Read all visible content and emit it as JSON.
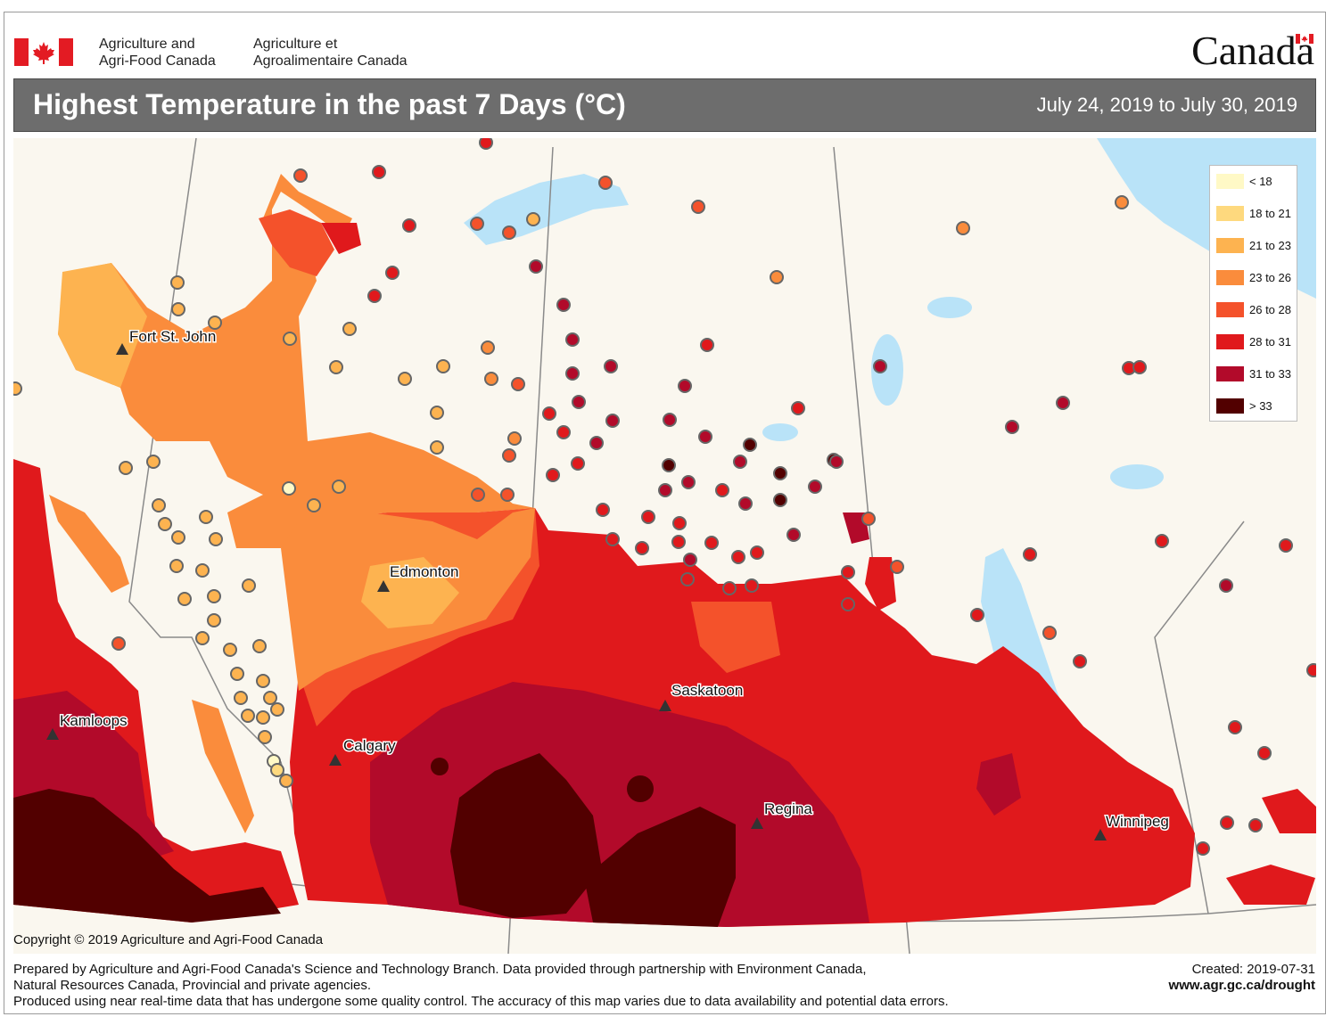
{
  "header": {
    "agency_en_line1": "Agriculture and",
    "agency_en_line2": "Agri-Food Canada",
    "agency_fr_line1": "Agriculture et",
    "agency_fr_line2": "Agroalimentaire Canada",
    "wordmark": "Canada"
  },
  "title": "Highest Temperature in the past 7 Days (°C)",
  "date_range": "July 24, 2019 to July 30, 2019",
  "colors": {
    "lt18": "#fff9c6",
    "c18_21": "#fed97e",
    "c21_23": "#fdb350",
    "c23_26": "#fa8c3c",
    "c26_28": "#f4522b",
    "c28_31": "#e0191c",
    "c31_33": "#b20a2a",
    "gt33": "#520000",
    "water": "#b9e3f8",
    "land": "#faf7ef"
  },
  "legend": [
    {
      "label": "< 18",
      "color": "#fff9c6"
    },
    {
      "label": "18 to 21",
      "color": "#fed97e"
    },
    {
      "label": "21 to 23",
      "color": "#fdb350"
    },
    {
      "label": "23 to 26",
      "color": "#fa8c3c"
    },
    {
      "label": "26 to 28",
      "color": "#f4522b"
    },
    {
      "label": "28 to 31",
      "color": "#e0191c"
    },
    {
      "label": "31 to 33",
      "color": "#b20a2a"
    },
    {
      "label": "> 33",
      "color": "#520000"
    }
  ],
  "cities": [
    {
      "name": "Fort St. John"
    },
    {
      "name": "Edmonton"
    },
    {
      "name": "Kamloops"
    },
    {
      "name": "Calgary"
    },
    {
      "name": "Saskatoon"
    },
    {
      "name": "Regina"
    },
    {
      "name": "Winnipeg"
    }
  ],
  "copyright": "Copyright © 2019 Agriculture and Agri-Food Canada",
  "footer": {
    "line1": "Prepared by Agriculture and Agri-Food Canada's Science and Technology Branch. Data provided through partnership with Environment Canada,",
    "line2": "Natural Resources Canada, Provincial and private agencies.",
    "line3": "Produced using near real-time data that has undergone some quality control. The accuracy of this map varies due to data availability and potential data errors.",
    "created": "Created: 2019-07-31",
    "website": "www.agr.gc.ca/drought"
  }
}
